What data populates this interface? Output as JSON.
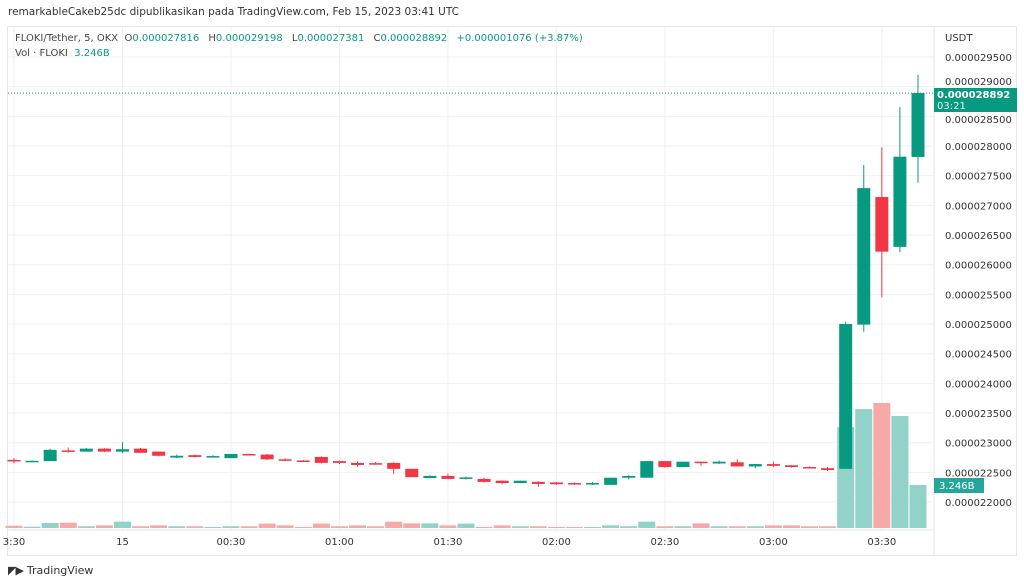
{
  "header": {
    "published_line": "remarkableCakeb25dc dipublikasikan pada TradingView.com, Feb 15, 2023 03:41 UTC"
  },
  "legend": {
    "symbol": "FLOKI/Tether, 5, OKX",
    "open_label": "O",
    "open": "0.000027816",
    "high_label": "H",
    "high": "0.000029198",
    "low_label": "L",
    "low": "0.000027381",
    "close_label": "C",
    "close": "0.000028892",
    "change": "+0.000001076 (+3.87%)",
    "volume_label": "Vol · FLOKI",
    "volume": "3.246B"
  },
  "price_axis": {
    "currency": "USDT",
    "last_price": "0.000028892",
    "countdown": "03:21",
    "volume_badge": "3.246B"
  },
  "footer": {
    "brand": "TradingView"
  },
  "colors": {
    "up": "#089981",
    "down": "#F23645",
    "vol_up": "#92d2c8",
    "vol_down": "#f7a9a7",
    "grid": "#f0f1f4"
  },
  "chart_data": {
    "type": "candlestick",
    "title": "FLOKI/Tether, 5, OKX",
    "ylabel": "USDT",
    "ylim": [
      2.15e-05,
      2.96e-05
    ],
    "y_ticks": [
      "0.000029500",
      "0.000029000",
      "0.000028500",
      "0.000028000",
      "0.000027500",
      "0.000027000",
      "0.000026500",
      "0.000026000",
      "0.000025500",
      "0.000025000",
      "0.000024500",
      "0.000024000",
      "0.000023500",
      "0.000023000",
      "0.000022500",
      "0.000022000"
    ],
    "y_tick_values": [
      2.95e-05,
      2.9e-05,
      2.85e-05,
      2.8e-05,
      2.75e-05,
      2.7e-05,
      2.65e-05,
      2.6e-05,
      2.55e-05,
      2.5e-05,
      2.45e-05,
      2.4e-05,
      2.35e-05,
      2.3e-05,
      2.25e-05,
      2.2e-05
    ],
    "x_ticks": [
      {
        "label": "3:30",
        "index": 0
      },
      {
        "label": "15",
        "index": 6
      },
      {
        "label": "00:30",
        "index": 12
      },
      {
        "label": "01:00",
        "index": 18
      },
      {
        "label": "01:30",
        "index": 24
      },
      {
        "label": "02:00",
        "index": 30
      },
      {
        "label": "02:30",
        "index": 36
      },
      {
        "label": "03:00",
        "index": 42
      },
      {
        "label": "03:30",
        "index": 48
      }
    ],
    "ohlc": [
      [
        2.271e-05,
        2.274e-05,
        2.265e-05,
        2.269e-05
      ],
      [
        2.269e-05,
        2.27e-05,
        2.268e-05,
        2.2695e-05
      ],
      [
        2.269e-05,
        2.29e-05,
        2.269e-05,
        2.288e-05
      ],
      [
        2.287e-05,
        2.292e-05,
        2.283e-05,
        2.286e-05
      ],
      [
        2.285e-05,
        2.291e-05,
        2.285e-05,
        2.29e-05
      ],
      [
        2.29e-05,
        2.291e-05,
        2.284e-05,
        2.285e-05
      ],
      [
        2.285e-05,
        2.301e-05,
        2.282e-05,
        2.289e-05
      ],
      [
        2.29e-05,
        2.291e-05,
        2.283e-05,
        2.283e-05
      ],
      [
        2.285e-05,
        2.285e-05,
        2.277e-05,
        2.278e-05
      ],
      [
        2.275e-05,
        2.28e-05,
        2.274e-05,
        2.278e-05
      ],
      [
        2.279e-05,
        2.28e-05,
        2.275e-05,
        2.276e-05
      ],
      [
        2.276e-05,
        2.279e-05,
        2.275e-05,
        2.2775e-05
      ],
      [
        2.274e-05,
        2.281e-05,
        2.274e-05,
        2.281e-05
      ],
      [
        2.281e-05,
        2.2815e-05,
        2.2795e-05,
        2.28e-05
      ],
      [
        2.28e-05,
        2.281e-05,
        2.271e-05,
        2.272e-05
      ],
      [
        2.272e-05,
        2.274e-05,
        2.269e-05,
        2.27e-05
      ],
      [
        2.27e-05,
        2.271e-05,
        2.268e-05,
        2.269e-05
      ],
      [
        2.276e-05,
        2.277e-05,
        2.265e-05,
        2.266e-05
      ],
      [
        2.269e-05,
        2.27e-05,
        2.264e-05,
        2.266e-05
      ],
      [
        2.266e-05,
        2.268e-05,
        2.26e-05,
        2.2625e-05
      ],
      [
        2.2655e-05,
        2.2675e-05,
        2.263e-05,
        2.264e-05
      ],
      [
        2.266e-05,
        2.267e-05,
        2.2475e-05,
        2.256e-05
      ],
      [
        2.256e-05,
        2.256e-05,
        2.242e-05,
        2.242e-05
      ],
      [
        2.2405e-05,
        2.245e-05,
        2.24e-05,
        2.244e-05
      ],
      [
        2.244e-05,
        2.248e-05,
        2.238e-05,
        2.239e-05
      ],
      [
        2.24e-05,
        2.243e-05,
        2.238e-05,
        2.2415e-05
      ],
      [
        2.239e-05,
        2.241e-05,
        2.233e-05,
        2.234e-05
      ],
      [
        2.236e-05,
        2.236e-05,
        2.23e-05,
        2.232e-05
      ],
      [
        2.232e-05,
        2.236e-05,
        2.232e-05,
        2.236e-05
      ],
      [
        2.234e-05,
        2.235e-05,
        2.2255e-05,
        2.2305e-05
      ],
      [
        2.233e-05,
        2.234e-05,
        2.229e-05,
        2.23e-05
      ],
      [
        2.232e-05,
        2.233e-05,
        2.229e-05,
        2.2305e-05
      ],
      [
        2.23e-05,
        2.234e-05,
        2.229e-05,
        2.232e-05
      ],
      [
        2.229e-05,
        2.241e-05,
        2.229e-05,
        2.241e-05
      ],
      [
        2.241e-05,
        2.245e-05,
        2.238e-05,
        2.244e-05
      ],
      [
        2.241e-05,
        2.269e-05,
        2.241e-05,
        2.269e-05
      ],
      [
        2.269e-05,
        2.269e-05,
        2.258e-05,
        2.259e-05
      ],
      [
        2.259e-05,
        2.268e-05,
        2.259e-05,
        2.268e-05
      ],
      [
        2.268e-05,
        2.268e-05,
        2.261e-05,
        2.2665e-05
      ],
      [
        2.265e-05,
        2.27e-05,
        2.264e-05,
        2.268e-05
      ],
      [
        2.267e-05,
        2.272e-05,
        2.26e-05,
        2.26e-05
      ],
      [
        2.26e-05,
        2.264e-05,
        2.257e-05,
        2.264e-05
      ],
      [
        2.264e-05,
        2.268e-05,
        2.259e-05,
        2.261e-05
      ],
      [
        2.262e-05,
        2.262e-05,
        2.258e-05,
        2.259e-05
      ],
      [
        2.259e-05,
        2.26e-05,
        2.257e-05,
        2.258e-05
      ],
      [
        2.257e-05,
        2.259e-05,
        2.252e-05,
        2.254e-05
      ],
      [
        2.256e-05,
        2.504e-05,
        2.256e-05,
        2.5e-05
      ],
      [
        2.499e-05,
        2.768e-05,
        2.487e-05,
        2.729e-05
      ],
      [
        2.714e-05,
        2.798e-05,
        2.545e-05,
        2.622e-05
      ],
      [
        2.63e-05,
        2.866e-05,
        2.621e-05,
        2.782e-05
      ],
      [
        2.7816e-05,
        2.9198e-05,
        2.7381e-05,
        2.8892e-05
      ]
    ],
    "volume_billions": [
      0.17,
      0.1,
      0.38,
      0.4,
      0.13,
      0.2,
      0.48,
      0.13,
      0.2,
      0.13,
      0.13,
      0.05,
      0.13,
      0.13,
      0.33,
      0.2,
      0.05,
      0.33,
      0.13,
      0.2,
      0.13,
      0.48,
      0.35,
      0.35,
      0.2,
      0.33,
      0.05,
      0.2,
      0.13,
      0.13,
      0.05,
      0.05,
      0.05,
      0.2,
      0.13,
      0.48,
      0.13,
      0.13,
      0.35,
      0.13,
      0.13,
      0.13,
      0.2,
      0.2,
      0.13,
      0.13,
      7.62,
      8.98,
      9.44,
      8.46,
      3.246
    ]
  }
}
